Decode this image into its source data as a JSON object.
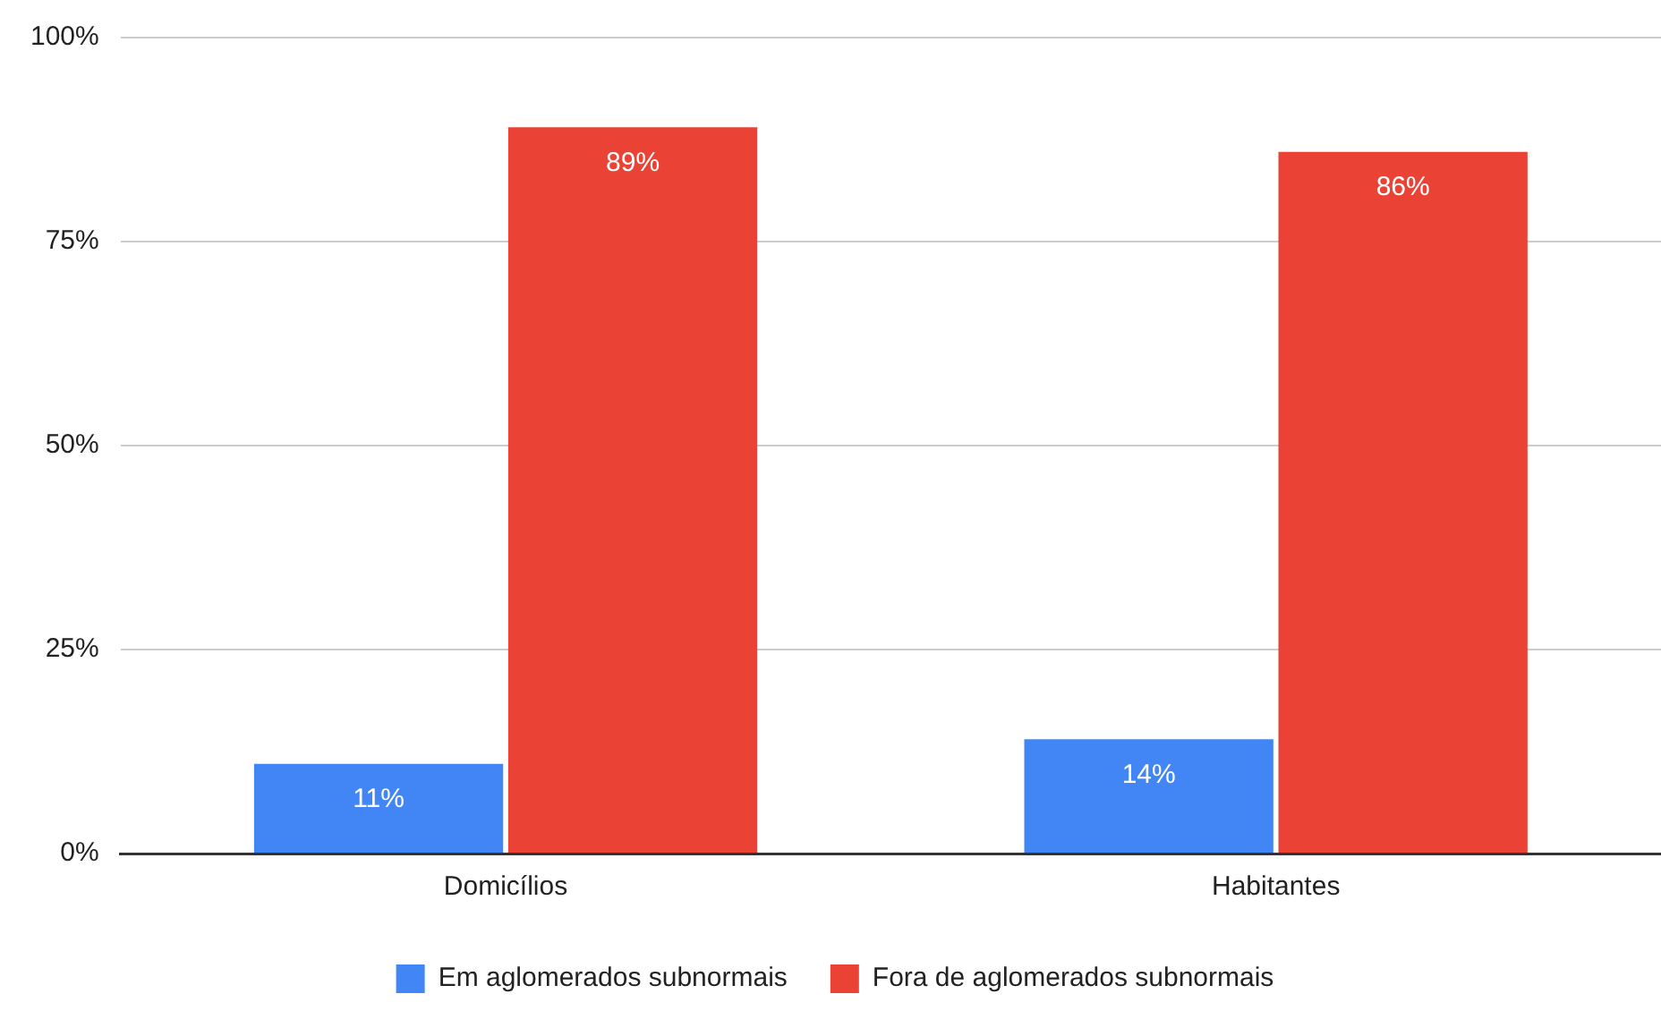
{
  "chart_data": {
    "type": "bar",
    "categories": [
      "Domicílios",
      "Habitantes"
    ],
    "series": [
      {
        "name": "Em aglomerados subnormais",
        "color": "#4285f4",
        "values": [
          11,
          14
        ],
        "value_labels": [
          "11%",
          "14%"
        ]
      },
      {
        "name": "Fora de aglomerados subnormais",
        "color": "#ea4335",
        "values": [
          89,
          86
        ],
        "value_labels": [
          "89%",
          "86%"
        ]
      }
    ],
    "ylim": [
      0,
      100
    ],
    "yticks": [
      {
        "value": 0,
        "label": "0%"
      },
      {
        "value": 25,
        "label": "25%"
      },
      {
        "value": 50,
        "label": "50%"
      },
      {
        "value": 75,
        "label": "75%"
      },
      {
        "value": 100,
        "label": "100%"
      }
    ],
    "grid": "y",
    "legend": "bottom"
  }
}
